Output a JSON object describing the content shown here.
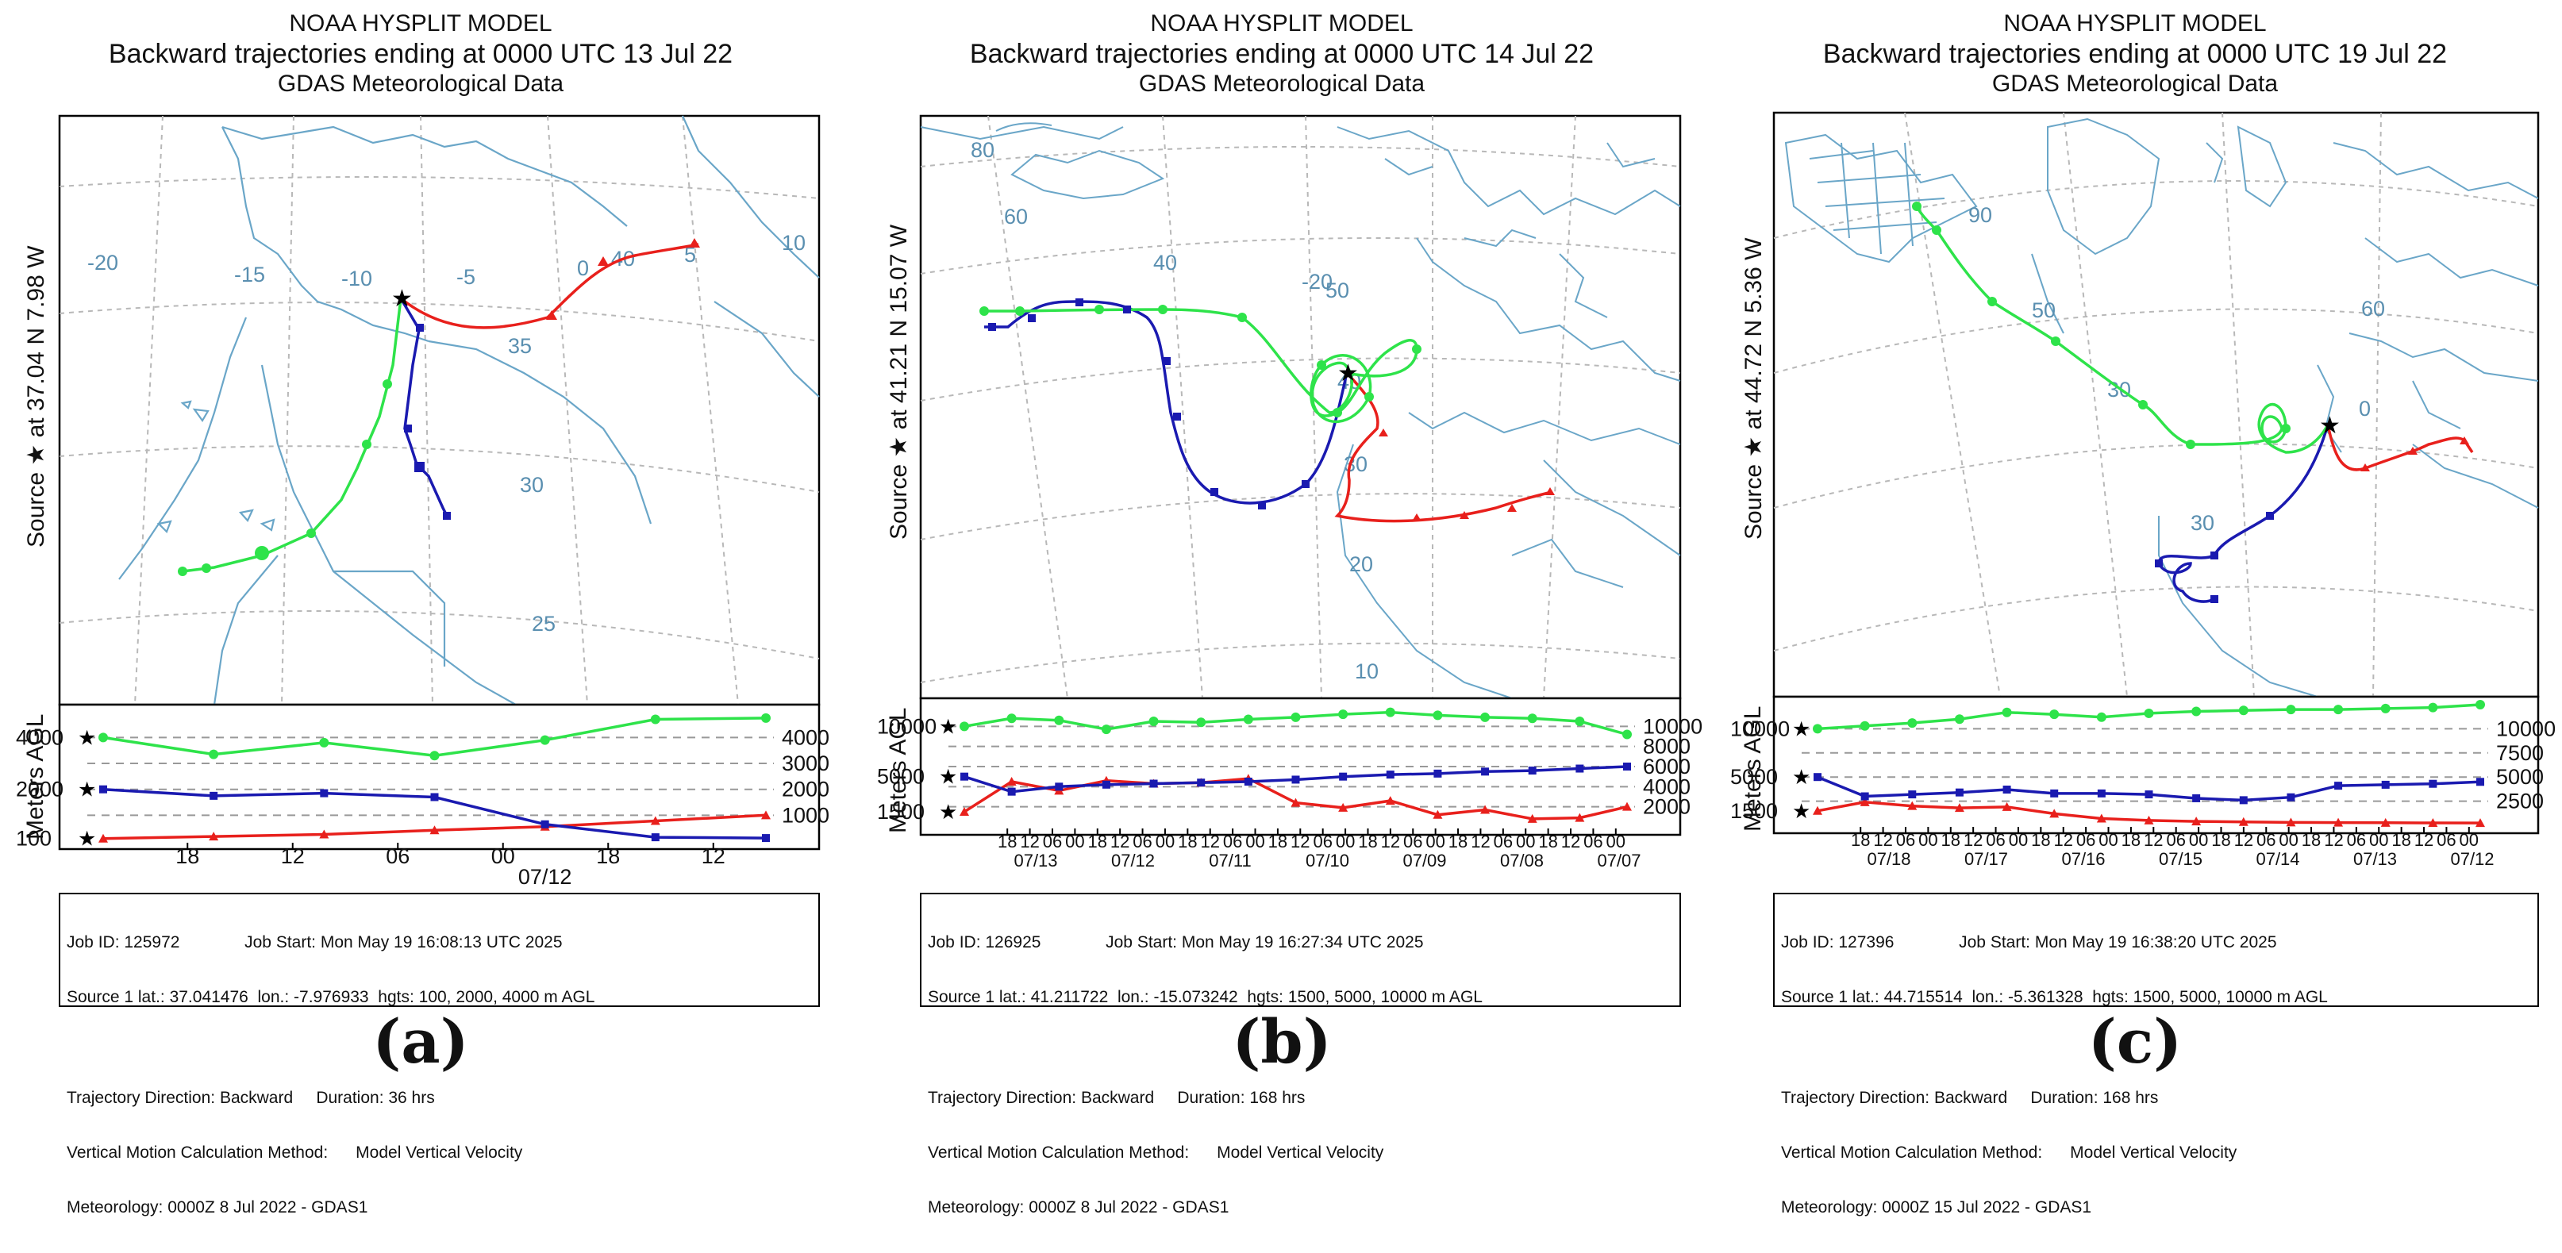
{
  "panels": [
    {
      "id": "a",
      "title": [
        "NOAA HYSPLIT MODEL",
        "Backward trajectories ending at 0000 UTC 13 Jul 22",
        "GDAS Meteorological Data"
      ],
      "side_label": "Source ★  at   37.04 N   7.98 W",
      "agl_label": "Meters AGL",
      "info": {
        "l1": "Job ID: 125972              Job Start: Mon May 19 16:08:13 UTC 2025",
        "l2": "Source 1 lat.: 37.041476  lon.: -7.976933  hgts: 100, 2000, 4000 m AGL",
        "l3": "Trajectory Direction: Backward     Duration: 36 hrs",
        "l4": "Vertical Motion Calculation Method:      Model Vertical Velocity",
        "l5": "Meteorology: 0000Z 8 Jul 2022 - GDAS1"
      },
      "panel_label": "(a)",
      "map_labels": [
        "40",
        "35",
        "30",
        "25",
        "-20",
        "-15",
        "-10",
        "-5",
        "0",
        "5",
        "10"
      ],
      "chart_data": {
        "type": "line",
        "title": "Meters AGL",
        "xlabel": "07/12",
        "x_tick_labels": [
          "18",
          "12",
          "06",
          "00",
          "18",
          "12"
        ],
        "date_labels": [
          "07/12"
        ],
        "left_ticks": [
          "4000",
          "2000",
          "100"
        ],
        "right_ticks": [
          "4000",
          "3000",
          "2000",
          "1000"
        ],
        "y_range": [
          0,
          4900
        ],
        "x_range_hours": [
          0,
          36
        ],
        "series": [
          {
            "name": "100 m AGL",
            "color": "#e8201c",
            "marker": "triangle",
            "x": [
              0,
              6,
              12,
              18,
              24,
              30,
              36
            ],
            "y": [
              100,
              180,
              260,
              420,
              560,
              780,
              1000
            ]
          },
          {
            "name": "2000 m AGL",
            "color": "#1a1ab0",
            "marker": "square",
            "x": [
              0,
              6,
              12,
              18,
              24,
              30,
              36
            ],
            "y": [
              2000,
              1750,
              1850,
              1700,
              650,
              150,
              120
            ]
          },
          {
            "name": "4000 m AGL",
            "color": "#2ee34a",
            "marker": "circle",
            "x": [
              0,
              6,
              12,
              18,
              24,
              30,
              36
            ],
            "y": [
              4000,
              3350,
              3800,
              3300,
              3900,
              4700,
              4750
            ]
          }
        ]
      }
    },
    {
      "id": "b",
      "title": [
        "NOAA HYSPLIT MODEL",
        "Backward trajectories ending at 0000 UTC 14 Jul 22",
        "GDAS Meteorological Data"
      ],
      "side_label": "Source ★  at   41.21 N   15.07 W",
      "agl_label": "Meters AGL",
      "info": {
        "l1": "Job ID: 126925              Job Start: Mon May 19 16:27:34 UTC 2025",
        "l2": "Source 1 lat.: 41.211722  lon.: -15.073242  hgts: 1500, 5000, 10000 m AGL",
        "l3": "Trajectory Direction: Backward     Duration: 168 hrs",
        "l4": "Vertical Motion Calculation Method:      Model Vertical Velocity",
        "l5": "Meteorology: 0000Z 8 Jul 2022 - GDAS1"
      },
      "panel_label": "(b)",
      "map_labels": [
        "80",
        "60",
        "40",
        "-20",
        "50",
        "40",
        "30",
        "20",
        "10"
      ],
      "chart_data": {
        "type": "line",
        "title": "Meters AGL",
        "xlabel": "",
        "x_tick_labels": [
          "18",
          "12",
          "06",
          "00",
          "18",
          "12",
          "06",
          "00",
          "18",
          "12",
          "06",
          "00",
          "18",
          "12",
          "06",
          "00",
          "18",
          "12",
          "06",
          "00",
          "18",
          "12",
          "06",
          "00",
          "18",
          "12",
          "06",
          "00"
        ],
        "date_labels": [
          "07/13",
          "07/12",
          "07/11",
          "07/10",
          "07/09",
          "07/08",
          "07/07"
        ],
        "left_ticks": [
          "10000",
          "5000",
          "1500"
        ],
        "right_ticks": [
          "10000",
          "8000",
          "6000",
          "4000",
          "2000"
        ],
        "y_range": [
          0,
          12000
        ],
        "x_range_hours": [
          0,
          168
        ],
        "series": [
          {
            "name": "1500 m AGL",
            "color": "#e8201c",
            "marker": "triangle",
            "x": [
              0,
              12,
              24,
              36,
              48,
              60,
              72,
              84,
              96,
              108,
              120,
              132,
              144,
              156,
              168
            ],
            "y": [
              1500,
              4500,
              3600,
              4600,
              4300,
              4400,
              4800,
              2400,
              1900,
              2600,
              1200,
              1700,
              800,
              900,
              2000
            ]
          },
          {
            "name": "5000 m AGL",
            "color": "#1a1ab0",
            "marker": "square",
            "x": [
              0,
              12,
              24,
              36,
              48,
              60,
              72,
              84,
              96,
              108,
              120,
              132,
              144,
              156,
              168
            ],
            "y": [
              5000,
              3500,
              4000,
              4200,
              4300,
              4400,
              4500,
              4700,
              5000,
              5200,
              5300,
              5500,
              5600,
              5800,
              6000
            ]
          },
          {
            "name": "10000 m AGL",
            "color": "#2ee34a",
            "marker": "circle",
            "x": [
              0,
              12,
              24,
              36,
              48,
              60,
              72,
              84,
              96,
              108,
              120,
              132,
              144,
              156,
              168
            ],
            "y": [
              10000,
              10800,
              10600,
              9700,
              10500,
              10400,
              10700,
              10900,
              11200,
              11400,
              11100,
              10900,
              10800,
              10500,
              9200
            ]
          }
        ]
      }
    },
    {
      "id": "c",
      "title": [
        "NOAA HYSPLIT MODEL",
        "Backward trajectories ending at 0000 UTC 19 Jul 22",
        "GDAS Meteorological Data"
      ],
      "side_label": "Source ★  at   44.72 N   5.36 W",
      "agl_label": "Meters AGL",
      "info": {
        "l1": "Job ID: 127396              Job Start: Mon May 19 16:38:20 UTC 2025",
        "l2": "Source 1 lat.: 44.715514  lon.: -5.361328  hgts: 1500, 5000, 10000 m AGL",
        "l3": "Trajectory Direction: Backward     Duration: 168 hrs",
        "l4": "Vertical Motion Calculation Method:      Model Vertical Velocity",
        "l5": "Meteorology: 0000Z 15 Jul 2022 - GDAS1"
      },
      "panel_label": "(c)",
      "map_labels": [
        "90",
        "60",
        "50",
        "30",
        "0",
        "30"
      ],
      "chart_data": {
        "type": "line",
        "title": "Meters AGL",
        "xlabel": "",
        "x_tick_labels": [
          "18",
          "12",
          "06",
          "00",
          "18",
          "12",
          "06",
          "00",
          "18",
          "12",
          "06",
          "00",
          "18",
          "12",
          "06",
          "00",
          "18",
          "12",
          "06",
          "00",
          "18",
          "12",
          "06",
          "00",
          "18",
          "12",
          "06",
          "00"
        ],
        "date_labels": [
          "07/18",
          "07/17",
          "07/16",
          "07/15",
          "07/14",
          "07/13",
          "07/12"
        ],
        "left_ticks": [
          "10000",
          "5000",
          "1500"
        ],
        "right_ticks": [
          "10000",
          "7500",
          "5000",
          "2500"
        ],
        "y_range": [
          0,
          12500
        ],
        "x_range_hours": [
          0,
          168
        ],
        "series": [
          {
            "name": "1500 m AGL",
            "color": "#e8201c",
            "marker": "triangle",
            "x": [
              0,
              12,
              24,
              36,
              48,
              60,
              72,
              84,
              96,
              108,
              120,
              132,
              144,
              156,
              168
            ],
            "y": [
              1500,
              2400,
              2000,
              1800,
              1900,
              1200,
              700,
              500,
              400,
              350,
              300,
              280,
              260,
              250,
              240
            ]
          },
          {
            "name": "5000 m AGL",
            "color": "#1a1ab0",
            "marker": "square",
            "x": [
              0,
              12,
              24,
              36,
              48,
              60,
              72,
              84,
              96,
              108,
              120,
              132,
              144,
              156,
              168
            ],
            "y": [
              5000,
              3000,
              3200,
              3400,
              3700,
              3300,
              3300,
              3200,
              2800,
              2600,
              2900,
              4100,
              4200,
              4300,
              4500
            ]
          },
          {
            "name": "10000 m AGL",
            "color": "#2ee34a",
            "marker": "circle",
            "x": [
              0,
              12,
              24,
              36,
              48,
              60,
              72,
              84,
              96,
              108,
              120,
              132,
              144,
              156,
              168
            ],
            "y": [
              10000,
              10300,
              10600,
              11000,
              11700,
              11500,
              11200,
              11600,
              11800,
              11900,
              12000,
              12000,
              12100,
              12200,
              12500
            ]
          }
        ]
      }
    }
  ]
}
